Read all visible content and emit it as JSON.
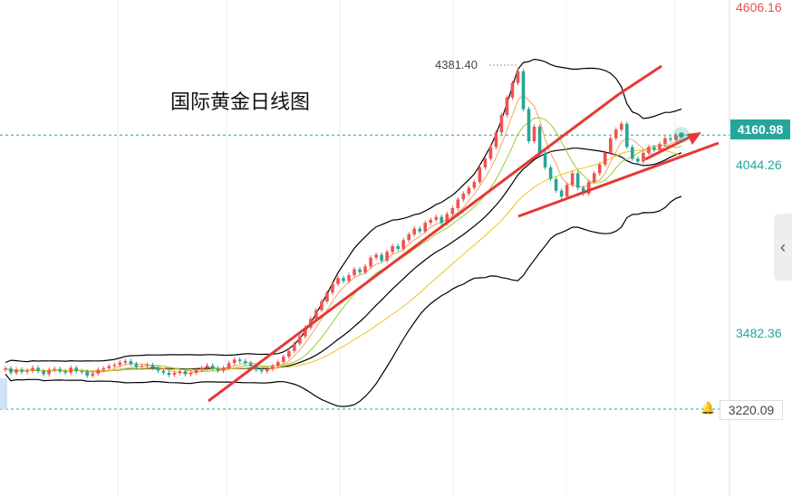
{
  "title": "国际黄金日线图",
  "peak_label": "4381.40",
  "axis": {
    "top": "4606.16",
    "mid1": "4044.26",
    "mid2": "3482.36",
    "bottom": "3220.09"
  },
  "current_price": "4160.98",
  "alert_price": "3220.09",
  "collapse_icon": "‹",
  "colors": {
    "up": "#ef5350",
    "down": "#26a69a",
    "ma_fast": "#f4a460",
    "ma_mid": "#9acd32",
    "ma_slow": "#f0c419",
    "band": "#000000",
    "trend": "#e53935",
    "grid": "#eeeeee"
  },
  "chart_data": {
    "type": "candlestick",
    "title": "国际黄金日线图",
    "y_ticks": [
      4606.16,
      4044.26,
      3482.36,
      3220.09
    ],
    "peak": 4381.4,
    "last": 4160.98,
    "close": [
      3360,
      3345,
      3356,
      3348,
      3352,
      3362,
      3350,
      3340,
      3355,
      3358,
      3350,
      3345,
      3362,
      3350,
      3348,
      3335,
      3342,
      3355,
      3360,
      3368,
      3372,
      3380,
      3385,
      3375,
      3365,
      3368,
      3372,
      3362,
      3352,
      3345,
      3338,
      3344,
      3350,
      3340,
      3345,
      3355,
      3362,
      3370,
      3360,
      3352,
      3362,
      3378,
      3390,
      3385,
      3378,
      3368,
      3355,
      3350,
      3358,
      3368,
      3382,
      3400,
      3420,
      3445,
      3470,
      3500,
      3530,
      3560,
      3590,
      3620,
      3650,
      3670,
      3660,
      3680,
      3700,
      3690,
      3710,
      3740,
      3750,
      3730,
      3760,
      3780,
      3770,
      3800,
      3820,
      3840,
      3830,
      3860,
      3870,
      3880,
      3860,
      3890,
      3910,
      3940,
      3960,
      3980,
      4000,
      4050,
      4080,
      4120,
      4170,
      4230,
      4290,
      4340,
      4380,
      4250,
      4140,
      4190,
      4100,
      4050,
      4010,
      3970,
      3950,
      3990,
      4030,
      3980,
      3960,
      4000,
      4030,
      4060,
      4100,
      4150,
      4180,
      4200,
      4120,
      4080,
      4070,
      4100,
      4120,
      4110,
      4130,
      4150,
      4145,
      4160,
      4161
    ],
    "band_upper_approx": 4380,
    "band_lower_approx": 3300
  }
}
